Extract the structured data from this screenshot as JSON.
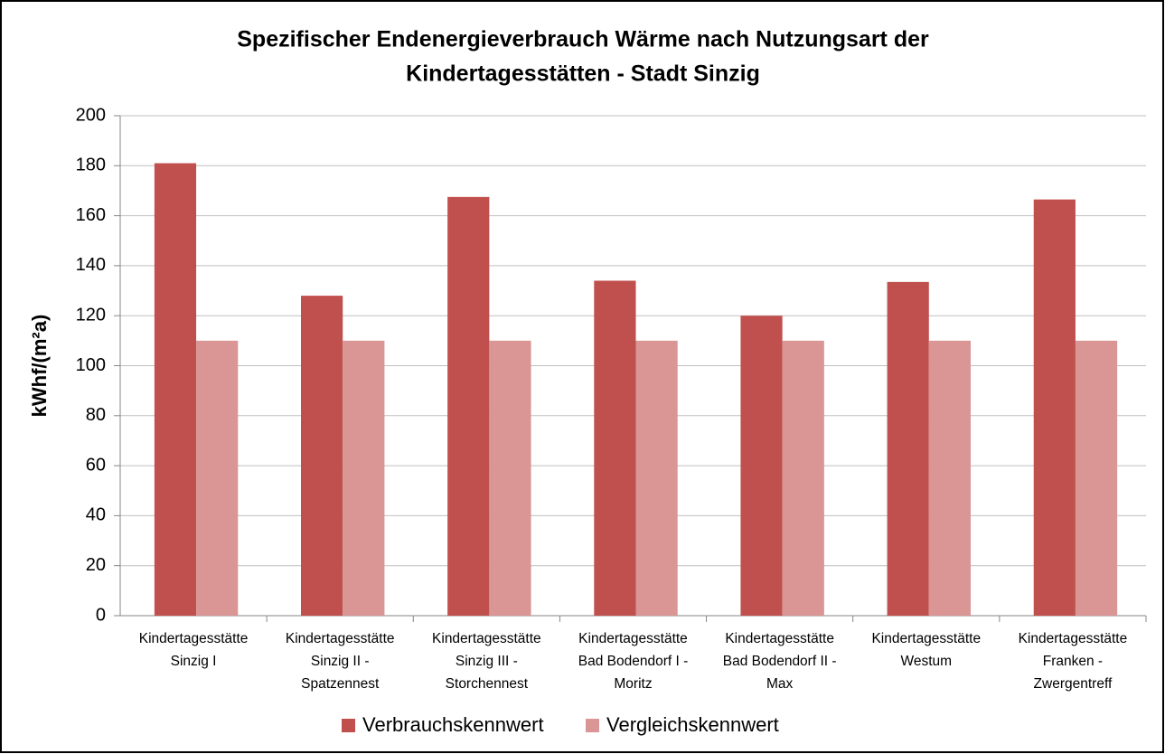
{
  "chart_data": {
    "type": "bar",
    "title": [
      "Spezifischer Endenergieverbrauch Wärme nach Nutzungsart der",
      "Kindertagesstätten - Stadt Sinzig"
    ],
    "y_label": "kWhf/(m²a)",
    "categories": [
      [
        "Kindertagesstätte",
        "Sinzig I"
      ],
      [
        "Kindertagesstätte",
        "Sinzig II -",
        "Spatzennest"
      ],
      [
        "Kindertagesstätte",
        "Sinzig III -",
        "Storchennest"
      ],
      [
        "Kindertagesstätte",
        "Bad Bodendorf I -",
        "Moritz"
      ],
      [
        "Kindertagesstätte",
        "Bad Bodendorf II -",
        "Max"
      ],
      [
        "Kindertagesstätte",
        "Westum"
      ],
      [
        "Kindertagesstätte",
        "Franken -",
        "Zwergentreff"
      ]
    ],
    "series": [
      {
        "name": "Verbrauchskennwert",
        "color": "#c0504d",
        "values": [
          181,
          128,
          167.5,
          134,
          120,
          133.5,
          166.5
        ]
      },
      {
        "name": "Vergleichskennwert",
        "color": "#d99694",
        "values": [
          110,
          110,
          110,
          110,
          110,
          110,
          110
        ]
      }
    ],
    "ylim": [
      0,
      200
    ],
    "yticks": [
      0,
      20,
      40,
      60,
      80,
      100,
      120,
      140,
      160,
      180,
      200
    ],
    "grid": true,
    "legend": "bottom"
  }
}
